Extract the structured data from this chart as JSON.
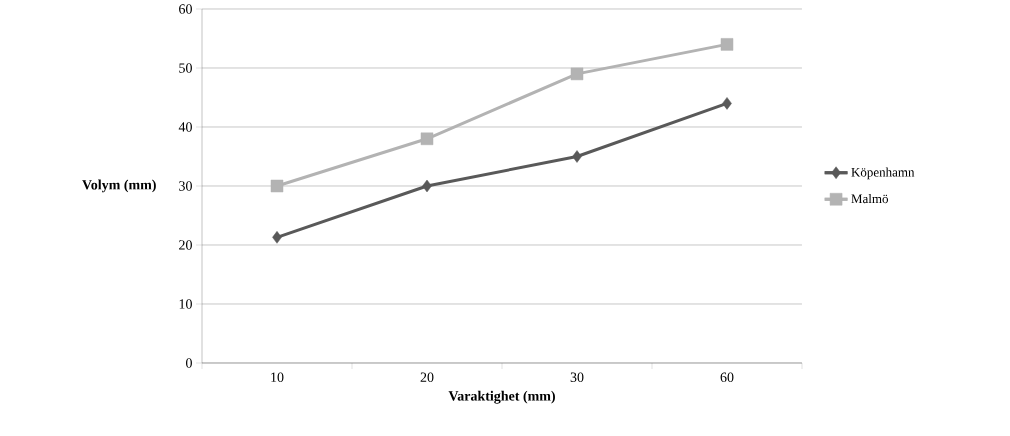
{
  "chart_data": {
    "type": "line",
    "xlabel": "Varaktighet (mm)",
    "ylabel": "Volym (mm)",
    "categories": [
      "10",
      "20",
      "30",
      "60"
    ],
    "series": [
      {
        "name": "Köpenhamn",
        "color": "#595959",
        "marker": "diamond",
        "values": [
          21.3,
          30,
          35,
          44
        ]
      },
      {
        "name": "Malmö",
        "color": "#b3b3b3",
        "marker": "square",
        "values": [
          30,
          38,
          49,
          54
        ]
      }
    ],
    "ylim": [
      0,
      60
    ],
    "yticks": [
      0,
      10,
      20,
      30,
      40,
      50,
      60
    ],
    "grid": "y",
    "legend": "right",
    "line_style": "solid"
  }
}
